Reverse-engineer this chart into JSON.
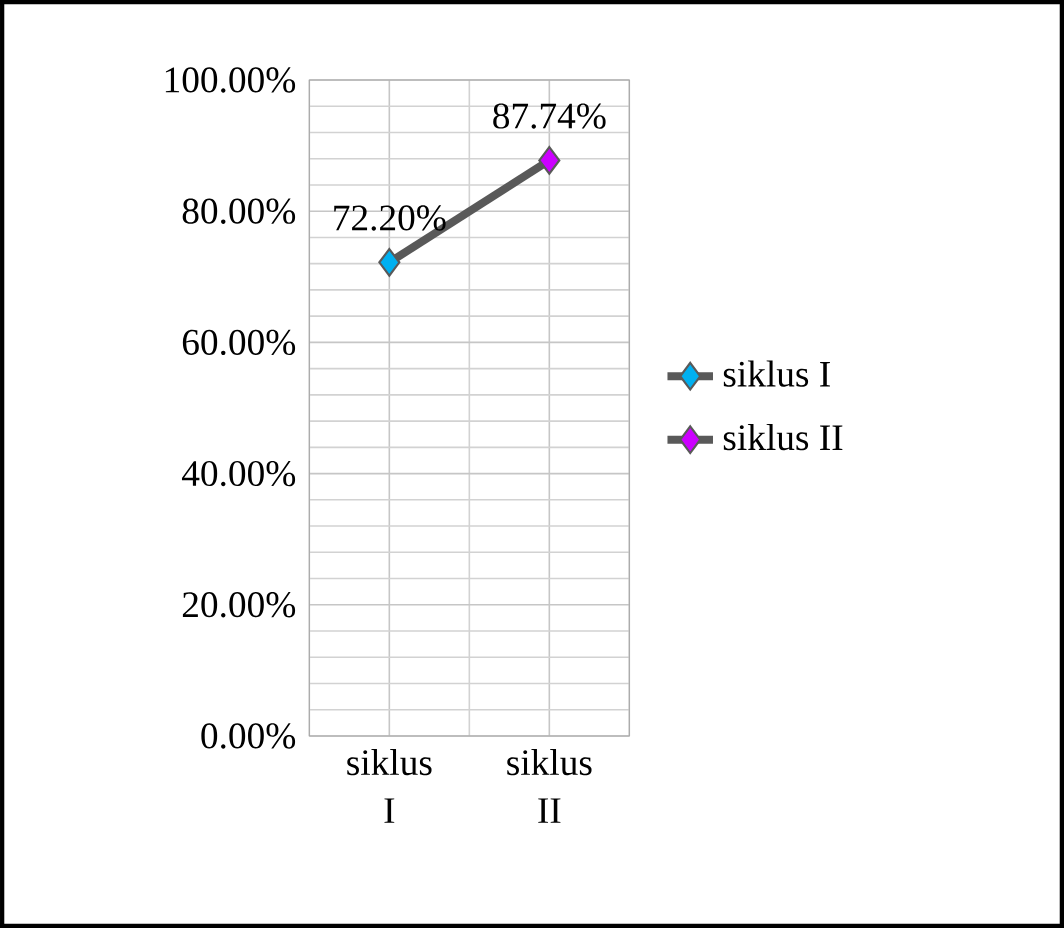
{
  "chart_data": {
    "type": "line",
    "categories": [
      "siklus I",
      "siklus II"
    ],
    "series": [
      {
        "color": "#595959",
        "marker": "none",
        "values": [
          72.2,
          87.74
        ]
      },
      {
        "type": "scatter",
        "name": "siklus I",
        "color": "#00b0f0",
        "values": [
          72.2,
          null
        ],
        "value_labels": [
          "72.20%",
          null
        ]
      },
      {
        "type": "scatter",
        "name": "siklus II",
        "color": "#cc00ff",
        "values": [
          null,
          87.74
        ],
        "value_labels": [
          null,
          "87.74%"
        ]
      }
    ],
    "ylim": [
      0,
      100
    ],
    "yticks": [
      {
        "value": 0,
        "label": "0.00%"
      },
      {
        "value": 20,
        "label": "20.00%"
      },
      {
        "value": 40,
        "label": "40.00%"
      },
      {
        "value": 60,
        "label": "60.00%"
      },
      {
        "value": 80,
        "label": "80.00%"
      },
      {
        "value": 100,
        "label": "100.00%"
      }
    ],
    "grid": true,
    "legend": "right",
    "marker": "diamond"
  }
}
